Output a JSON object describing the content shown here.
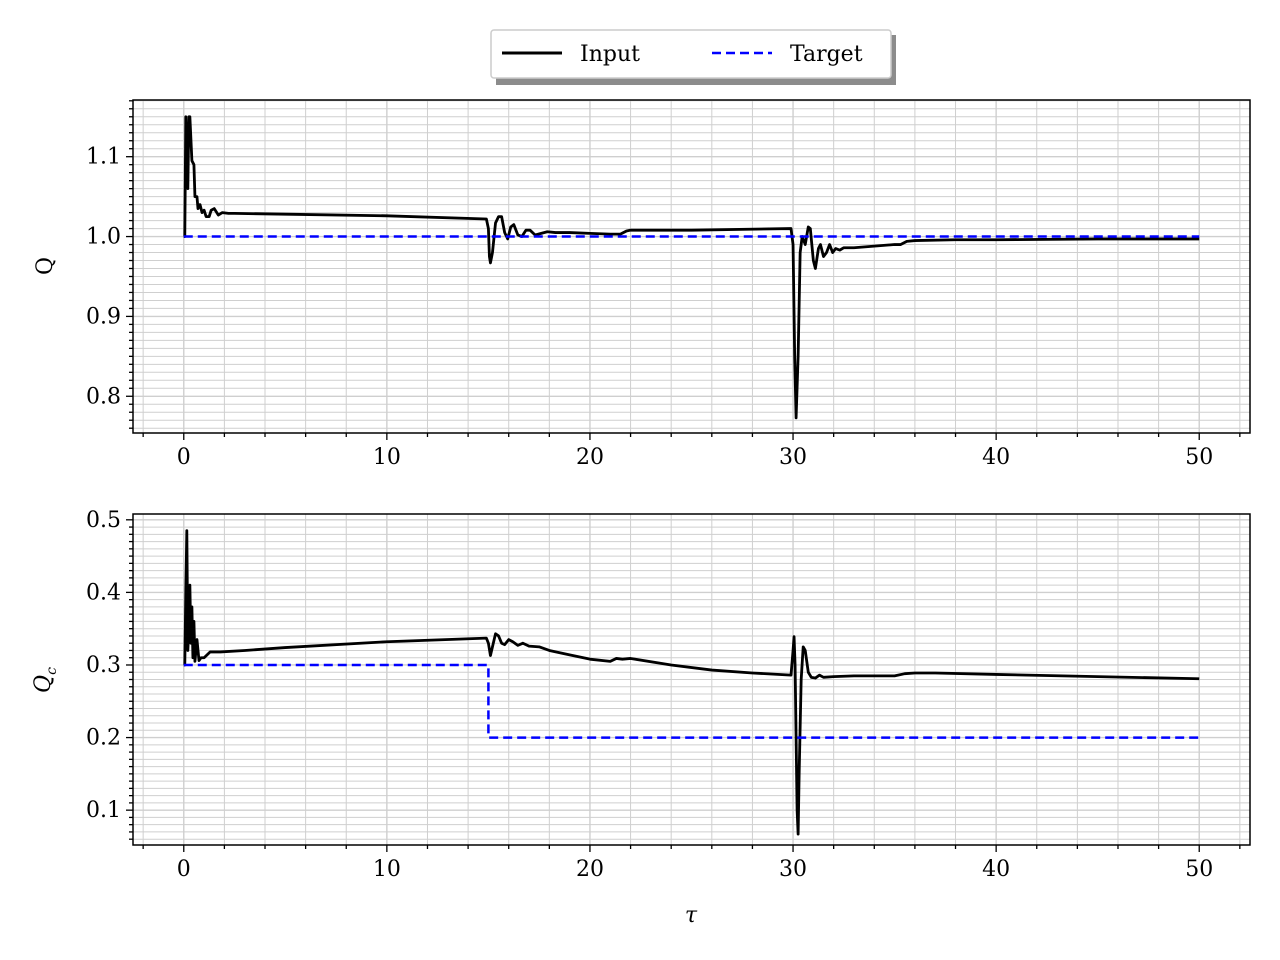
{
  "legend": {
    "entries": [
      {
        "label": "Input",
        "color": "#000000",
        "style": "solid"
      },
      {
        "label": "Target",
        "color": "#0000ff",
        "style": "dashed"
      }
    ],
    "placement": "top-center, above plots",
    "shadow": true
  },
  "chart_data": [
    {
      "type": "line",
      "ylabel": "Q",
      "xlabel": "",
      "xlim": [
        -2.5,
        52.5
      ],
      "ylim": [
        0.754,
        1.171
      ],
      "grid": "major and minor",
      "xticks": [
        0,
        10,
        20,
        30,
        40,
        50
      ],
      "xtick_labels": [
        "0",
        "10",
        "20",
        "30",
        "40",
        "50"
      ],
      "yticks": [
        0.8,
        0.9,
        1.0,
        1.1
      ],
      "ytick_labels": [
        "0.8",
        "0.9",
        "1.0",
        "1.1"
      ],
      "series": [
        {
          "name": "Input",
          "color": "#000000",
          "style": "solid",
          "points": [
            [
              0,
              1.0
            ],
            [
              0.05,
              1.0
            ],
            [
              0.1,
              1.15
            ],
            [
              0.2,
              1.06
            ],
            [
              0.25,
              1.15
            ],
            [
              0.3,
              1.15
            ],
            [
              0.4,
              1.095
            ],
            [
              0.5,
              1.09
            ],
            [
              0.55,
              1.05
            ],
            [
              0.65,
              1.05
            ],
            [
              0.7,
              1.035
            ],
            [
              0.8,
              1.04
            ],
            [
              0.9,
              1.03
            ],
            [
              1.0,
              1.033
            ],
            [
              1.1,
              1.025
            ],
            [
              1.25,
              1.025
            ],
            [
              1.35,
              1.033
            ],
            [
              1.5,
              1.035
            ],
            [
              1.7,
              1.027
            ],
            [
              1.9,
              1.03
            ],
            [
              2.2,
              1.029
            ],
            [
              2.5,
              1.029
            ],
            [
              5,
              1.028
            ],
            [
              10,
              1.026
            ],
            [
              14.9,
              1.022
            ],
            [
              15.0,
              1.01
            ],
            [
              15.05,
              0.975
            ],
            [
              15.1,
              0.967
            ],
            [
              15.2,
              0.98
            ],
            [
              15.35,
              1.017
            ],
            [
              15.5,
              1.025
            ],
            [
              15.65,
              1.025
            ],
            [
              15.8,
              1.005
            ],
            [
              15.95,
              0.997
            ],
            [
              16.1,
              1.012
            ],
            [
              16.25,
              1.015
            ],
            [
              16.45,
              1.002
            ],
            [
              16.65,
              1.0
            ],
            [
              16.85,
              1.008
            ],
            [
              17.05,
              1.008
            ],
            [
              17.3,
              1.002
            ],
            [
              17.6,
              1.004
            ],
            [
              17.9,
              1.006
            ],
            [
              18.3,
              1.005
            ],
            [
              19,
              1.005
            ],
            [
              20,
              1.004
            ],
            [
              21,
              1.003
            ],
            [
              21.5,
              1.003
            ],
            [
              21.8,
              1.007
            ],
            [
              22,
              1.008
            ],
            [
              25,
              1.008
            ],
            [
              29.9,
              1.01
            ],
            [
              30.0,
              0.99
            ],
            [
              30.08,
              0.85
            ],
            [
              30.15,
              0.773
            ],
            [
              30.25,
              0.85
            ],
            [
              30.35,
              0.98
            ],
            [
              30.45,
              1.0
            ],
            [
              30.6,
              0.99
            ],
            [
              30.75,
              1.012
            ],
            [
              30.85,
              1.01
            ],
            [
              31.0,
              0.97
            ],
            [
              31.1,
              0.96
            ],
            [
              31.25,
              0.985
            ],
            [
              31.35,
              0.99
            ],
            [
              31.5,
              0.975
            ],
            [
              31.65,
              0.98
            ],
            [
              31.8,
              0.99
            ],
            [
              31.95,
              0.98
            ],
            [
              32.1,
              0.985
            ],
            [
              32.3,
              0.983
            ],
            [
              32.5,
              0.986
            ],
            [
              33,
              0.986
            ],
            [
              34,
              0.988
            ],
            [
              35,
              0.99
            ],
            [
              35.3,
              0.99
            ],
            [
              35.6,
              0.994
            ],
            [
              36,
              0.995
            ],
            [
              38,
              0.996
            ],
            [
              40,
              0.996
            ],
            [
              45,
              0.997
            ],
            [
              50,
              0.997
            ]
          ]
        },
        {
          "name": "Target",
          "color": "#0000ff",
          "style": "dashed",
          "points": [
            [
              0,
              1.0
            ],
            [
              50,
              1.0
            ]
          ]
        }
      ]
    },
    {
      "type": "line",
      "ylabel": "Q_c",
      "xlabel": "τ",
      "xlim": [
        -2.5,
        52.5
      ],
      "ylim": [
        0.052,
        0.508
      ],
      "grid": "major and minor",
      "xticks": [
        0,
        10,
        20,
        30,
        40,
        50
      ],
      "xtick_labels": [
        "0",
        "10",
        "20",
        "30",
        "40",
        "50"
      ],
      "yticks": [
        0.1,
        0.2,
        0.3,
        0.4,
        0.5
      ],
      "ytick_labels": [
        "0.1",
        "0.2",
        "0.3",
        "0.4",
        "0.5"
      ],
      "series": [
        {
          "name": "Input",
          "color": "#000000",
          "style": "solid",
          "points": [
            [
              0,
              0.3
            ],
            [
              0.05,
              0.3
            ],
            [
              0.1,
              0.4
            ],
            [
              0.15,
              0.485
            ],
            [
              0.2,
              0.32
            ],
            [
              0.25,
              0.35
            ],
            [
              0.3,
              0.41
            ],
            [
              0.35,
              0.33
            ],
            [
              0.4,
              0.38
            ],
            [
              0.45,
              0.31
            ],
            [
              0.5,
              0.36
            ],
            [
              0.55,
              0.305
            ],
            [
              0.65,
              0.335
            ],
            [
              0.75,
              0.306
            ],
            [
              0.85,
              0.31
            ],
            [
              1.0,
              0.31
            ],
            [
              1.3,
              0.318
            ],
            [
              1.8,
              0.318
            ],
            [
              3,
              0.32
            ],
            [
              5,
              0.324
            ],
            [
              10,
              0.332
            ],
            [
              14.9,
              0.337
            ],
            [
              15.0,
              0.33
            ],
            [
              15.1,
              0.313
            ],
            [
              15.2,
              0.325
            ],
            [
              15.35,
              0.343
            ],
            [
              15.5,
              0.34
            ],
            [
              15.65,
              0.33
            ],
            [
              15.8,
              0.328
            ],
            [
              16.0,
              0.335
            ],
            [
              16.2,
              0.332
            ],
            [
              16.45,
              0.327
            ],
            [
              16.7,
              0.33
            ],
            [
              17,
              0.326
            ],
            [
              17.5,
              0.325
            ],
            [
              18,
              0.32
            ],
            [
              19,
              0.314
            ],
            [
              20,
              0.308
            ],
            [
              21,
              0.305
            ],
            [
              21.3,
              0.309
            ],
            [
              21.6,
              0.308
            ],
            [
              22,
              0.309
            ],
            [
              24,
              0.3
            ],
            [
              26,
              0.293
            ],
            [
              28,
              0.289
            ],
            [
              29.9,
              0.286
            ],
            [
              30.0,
              0.32
            ],
            [
              30.05,
              0.339
            ],
            [
              30.1,
              0.3
            ],
            [
              30.2,
              0.1
            ],
            [
              30.25,
              0.067
            ],
            [
              30.3,
              0.15
            ],
            [
              30.4,
              0.28
            ],
            [
              30.5,
              0.325
            ],
            [
              30.6,
              0.32
            ],
            [
              30.75,
              0.29
            ],
            [
              30.9,
              0.283
            ],
            [
              31.1,
              0.282
            ],
            [
              31.3,
              0.286
            ],
            [
              31.5,
              0.283
            ],
            [
              32,
              0.284
            ],
            [
              33,
              0.285
            ],
            [
              34,
              0.285
            ],
            [
              35,
              0.285
            ],
            [
              35.5,
              0.288
            ],
            [
              36,
              0.289
            ],
            [
              37,
              0.289
            ],
            [
              40,
              0.287
            ],
            [
              45,
              0.284
            ],
            [
              50,
              0.281
            ]
          ]
        },
        {
          "name": "Target",
          "color": "#0000ff",
          "style": "dashed",
          "points": [
            [
              0,
              0.3
            ],
            [
              15,
              0.3
            ],
            [
              15,
              0.2
            ],
            [
              50,
              0.2
            ]
          ]
        }
      ]
    }
  ]
}
